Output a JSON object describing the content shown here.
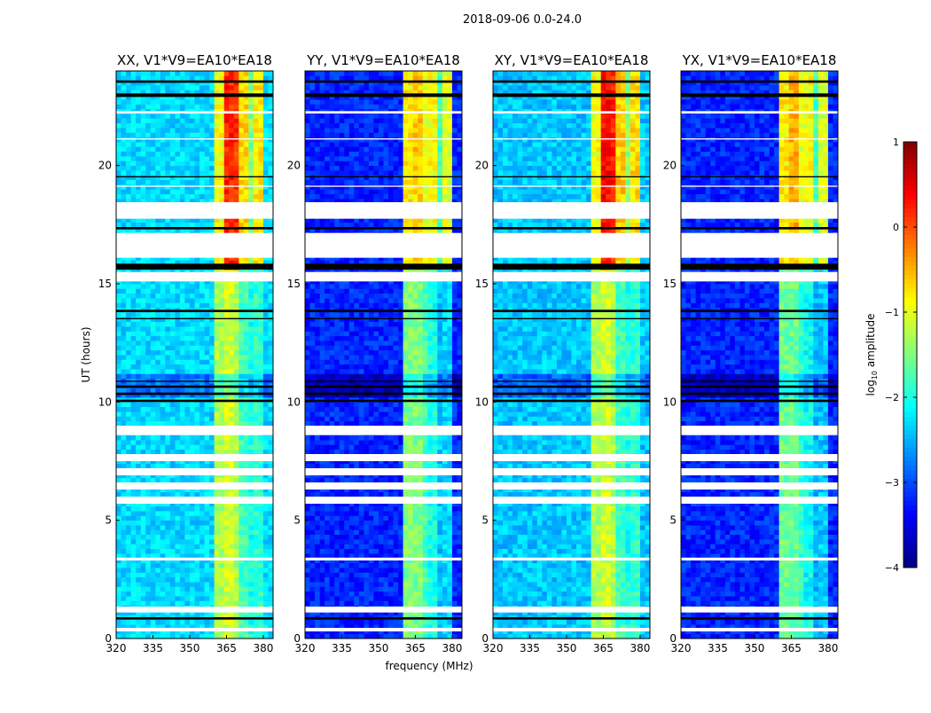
{
  "figure_title": "2018-09-06 0.0-24.0",
  "ylabel": "UT (hours)",
  "xlabel": "frequency (MHz)",
  "colorbar": {
    "label_prefix": "log",
    "label_sub": "10",
    "label_suffix": " amplitude",
    "range": [
      -4,
      1
    ],
    "ticks": [
      "1",
      "0",
      "−1",
      "−2",
      "−3",
      "−4"
    ],
    "tick_values": [
      1,
      0,
      -1,
      -2,
      -3,
      -4
    ],
    "colormap": "jet"
  },
  "chart_data": [
    {
      "type": "heatmap",
      "title": "XX, V1*V9=EA10*EA18",
      "xlim": [
        320,
        384
      ],
      "ylim": [
        0,
        24
      ],
      "xticks": [
        "320",
        "335",
        "350",
        "365",
        "380"
      ],
      "xtick_values": [
        320,
        335,
        350,
        365,
        380
      ],
      "yticks": [
        "0",
        "5",
        "10",
        "15",
        "20"
      ],
      "ytick_values": [
        0,
        5,
        10,
        15,
        20
      ],
      "background": -2.3,
      "bands": [
        {
          "f": [
            361,
            364
          ],
          "upper": -0.9,
          "lower": -1.3
        },
        {
          "f": [
            364,
            368
          ],
          "upper": 0.2,
          "lower": -1.1
        },
        {
          "f": [
            368,
            371
          ],
          "upper": 0.1,
          "lower": -1.3
        },
        {
          "f": [
            371,
            375
          ],
          "upper": -0.7,
          "lower": -1.8
        },
        {
          "f": [
            375,
            377
          ],
          "upper": -1.5,
          "lower": -2.0
        },
        {
          "f": [
            377,
            380
          ],
          "upper": -0.8,
          "lower": -1.9
        }
      ]
    },
    {
      "type": "heatmap",
      "title": "YY, V1*V9=EA10*EA18",
      "xlim": [
        320,
        384
      ],
      "ylim": [
        0,
        24
      ],
      "xticks": [
        "320",
        "335",
        "350",
        "365",
        "380"
      ],
      "xtick_values": [
        320,
        335,
        350,
        365,
        380
      ],
      "yticks": [
        "0",
        "5",
        "10",
        "15",
        "20"
      ],
      "ytick_values": [
        0,
        5,
        10,
        15,
        20
      ],
      "background": -3.2,
      "bands": [
        {
          "f": [
            361,
            364
          ],
          "upper": -0.8,
          "lower": -1.5
        },
        {
          "f": [
            364,
            368
          ],
          "upper": -0.6,
          "lower": -1.5
        },
        {
          "f": [
            368,
            371
          ],
          "upper": -1.0,
          "lower": -1.8
        },
        {
          "f": [
            371,
            375
          ],
          "upper": -0.9,
          "lower": -2.0
        },
        {
          "f": [
            375,
            377
          ],
          "upper": -1.8,
          "lower": -2.4
        },
        {
          "f": [
            377,
            380
          ],
          "upper": -1.0,
          "lower": -2.3
        }
      ]
    },
    {
      "type": "heatmap",
      "title": "XY, V1*V9=EA10*EA18",
      "xlim": [
        320,
        384
      ],
      "ylim": [
        0,
        24
      ],
      "xticks": [
        "320",
        "335",
        "350",
        "365",
        "380"
      ],
      "xtick_values": [
        320,
        335,
        350,
        365,
        380
      ],
      "yticks": [
        "0",
        "5",
        "10",
        "15",
        "20"
      ],
      "ytick_values": [
        0,
        5,
        10,
        15,
        20
      ],
      "background": -2.4,
      "bands": [
        {
          "f": [
            361,
            364
          ],
          "upper": -0.9,
          "lower": -1.3
        },
        {
          "f": [
            364,
            368
          ],
          "upper": 0.35,
          "lower": -1.1
        },
        {
          "f": [
            368,
            371
          ],
          "upper": 0.2,
          "lower": -1.3
        },
        {
          "f": [
            371,
            375
          ],
          "upper": -0.6,
          "lower": -1.8
        },
        {
          "f": [
            375,
            377
          ],
          "upper": -1.4,
          "lower": -2.0
        },
        {
          "f": [
            377,
            380
          ],
          "upper": -0.7,
          "lower": -1.9
        }
      ]
    },
    {
      "type": "heatmap",
      "title": "YX, V1*V9=EA10*EA18",
      "xlim": [
        320,
        384
      ],
      "ylim": [
        0,
        24
      ],
      "xticks": [
        "320",
        "335",
        "350",
        "365",
        "380"
      ],
      "xtick_values": [
        320,
        335,
        350,
        365,
        380
      ],
      "yticks": [
        "0",
        "5",
        "10",
        "15",
        "20"
      ],
      "ytick_values": [
        0,
        5,
        10,
        15,
        20
      ],
      "background": -3.2,
      "bands": [
        {
          "f": [
            361,
            364
          ],
          "upper": -0.8,
          "lower": -1.6
        },
        {
          "f": [
            364,
            368
          ],
          "upper": -0.5,
          "lower": -1.6
        },
        {
          "f": [
            368,
            371
          ],
          "upper": -1.0,
          "lower": -1.9
        },
        {
          "f": [
            371,
            375
          ],
          "upper": -0.9,
          "lower": -2.1
        },
        {
          "f": [
            375,
            377
          ],
          "upper": -1.8,
          "lower": -2.5
        },
        {
          "f": [
            377,
            380
          ],
          "upper": -1.0,
          "lower": -2.4
        }
      ]
    }
  ],
  "flags": {
    "white_hours": [
      [
        17.75,
        18.45
      ],
      [
        16.1,
        17.15
      ],
      [
        15.1,
        15.5
      ],
      [
        8.6,
        9.0
      ],
      [
        7.5,
        7.8
      ],
      [
        6.9,
        7.2
      ],
      [
        6.3,
        6.6
      ],
      [
        5.7,
        6.0
      ],
      [
        3.3,
        3.42
      ],
      [
        1.1,
        1.35
      ],
      [
        0.3,
        0.45
      ],
      [
        22.2,
        22.3
      ],
      [
        21.1,
        21.15
      ],
      [
        19.1,
        19.15
      ]
    ],
    "black_hours": [
      [
        15.6,
        15.85
      ],
      [
        13.8,
        13.9
      ],
      [
        13.5,
        13.55
      ],
      [
        10.0,
        10.1
      ],
      [
        10.3,
        10.4
      ],
      [
        10.6,
        10.7
      ],
      [
        10.85,
        10.9
      ],
      [
        0.8,
        0.9
      ],
      [
        22.9,
        23.05
      ],
      [
        23.5,
        23.6
      ],
      [
        19.5,
        19.55
      ],
      [
        17.3,
        17.4
      ]
    ]
  }
}
